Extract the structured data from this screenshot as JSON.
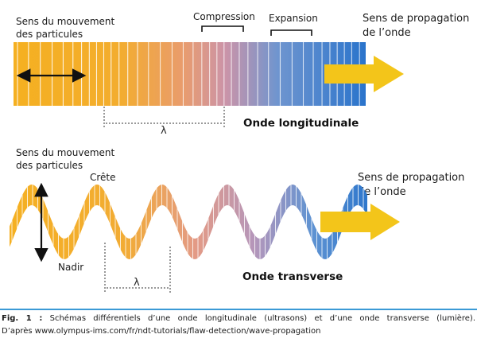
{
  "top": {
    "particles_line1": "Sens du mouvement",
    "particles_line2": "des particules",
    "compression": "Compression",
    "expansion": "Expansion",
    "prop_line1": "Sens de propagation",
    "prop_line2": "de l’onde",
    "lambda": "λ",
    "title": "Onde longitudinale"
  },
  "bottom": {
    "particles_line1": "Sens du mouvement",
    "particles_line2": "des particules",
    "crest": "Crête",
    "trough": "Nadir",
    "prop_line1": "Sens de propagation",
    "prop_line2": "de l’onde",
    "lambda": "λ",
    "title": "Onde transverse"
  },
  "caption": {
    "fig": "Fig. 1 :",
    "line1": "Schémas différentiels d’une onde longitudinale (ultrasons) et d’une onde transverse (lumière).",
    "line2": "D’après www.olympus-ims.com/fr/ndt-tutorials/flaw-detection/wave-propagation"
  },
  "colors": {
    "orange": "#f5b021",
    "salmon": "#e9a08a",
    "blue": "#2f7fd0",
    "arrow": "#f3c51a",
    "rule": "#3b9ad6"
  }
}
